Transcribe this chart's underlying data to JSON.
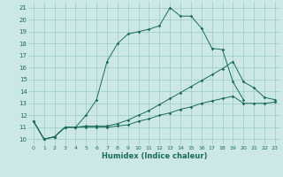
{
  "xlabel": "Humidex (Indice chaleur)",
  "background_color": "#cce8e4",
  "grid_color": "#99ccc4",
  "line_color": "#1a6b5a",
  "xlim": [
    -0.5,
    23.5
  ],
  "ylim": [
    9.5,
    21.5
  ],
  "yticks": [
    10,
    11,
    12,
    13,
    14,
    15,
    16,
    17,
    18,
    19,
    20,
    21
  ],
  "xticks": [
    0,
    1,
    2,
    3,
    4,
    5,
    6,
    7,
    8,
    9,
    10,
    11,
    12,
    13,
    14,
    15,
    16,
    17,
    18,
    19,
    20,
    21,
    22,
    23
  ],
  "line1_x": [
    0,
    1,
    2,
    3,
    4,
    5,
    6,
    7,
    8,
    9,
    10,
    11,
    12,
    13,
    14,
    15,
    16,
    17,
    18,
    19,
    20
  ],
  "line1_y": [
    11.5,
    10.0,
    10.2,
    11.0,
    11.0,
    12.0,
    13.3,
    16.5,
    18.0,
    18.8,
    19.0,
    19.2,
    19.5,
    21.0,
    20.3,
    20.3,
    19.3,
    17.6,
    17.5,
    14.8,
    13.3
  ],
  "line2_x": [
    0,
    1,
    2,
    3,
    4,
    5,
    6,
    7,
    8,
    9,
    10,
    11,
    12,
    13,
    14,
    15,
    16,
    17,
    18,
    19,
    20,
    21,
    22,
    23
  ],
  "line2_y": [
    11.5,
    10.0,
    10.2,
    11.0,
    11.0,
    11.1,
    11.1,
    11.1,
    11.3,
    11.6,
    12.0,
    12.4,
    12.9,
    13.4,
    13.9,
    14.4,
    14.9,
    15.4,
    15.9,
    16.5,
    14.8,
    14.3,
    13.5,
    13.3
  ],
  "line3_x": [
    0,
    1,
    2,
    3,
    4,
    5,
    6,
    7,
    8,
    9,
    10,
    11,
    12,
    13,
    14,
    15,
    16,
    17,
    18,
    19,
    20,
    21,
    22,
    23
  ],
  "line3_y": [
    11.5,
    10.0,
    10.2,
    11.0,
    11.0,
    11.0,
    11.0,
    11.0,
    11.1,
    11.2,
    11.5,
    11.7,
    12.0,
    12.2,
    12.5,
    12.7,
    13.0,
    13.2,
    13.4,
    13.6,
    13.0,
    13.0,
    13.0,
    13.1
  ]
}
